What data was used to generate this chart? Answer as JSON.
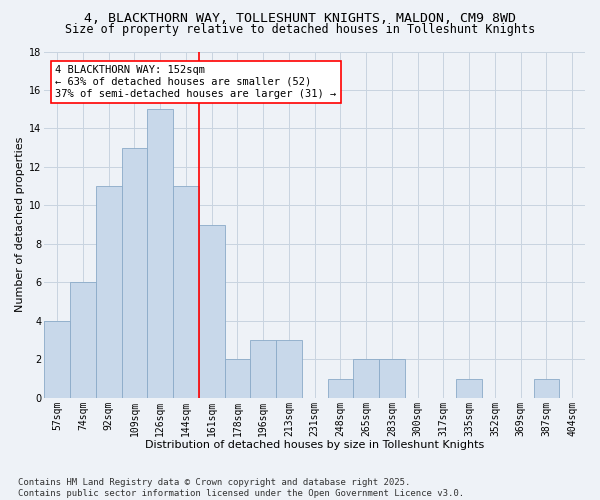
{
  "title": "4, BLACKTHORN WAY, TOLLESHUNT KNIGHTS, MALDON, CM9 8WD",
  "subtitle": "Size of property relative to detached houses in Tolleshunt Knights",
  "xlabel": "Distribution of detached houses by size in Tolleshunt Knights",
  "ylabel": "Number of detached properties",
  "footnote": "Contains HM Land Registry data © Crown copyright and database right 2025.\nContains public sector information licensed under the Open Government Licence v3.0.",
  "categories": [
    "57sqm",
    "74sqm",
    "92sqm",
    "109sqm",
    "126sqm",
    "144sqm",
    "161sqm",
    "178sqm",
    "196sqm",
    "213sqm",
    "231sqm",
    "248sqm",
    "265sqm",
    "283sqm",
    "300sqm",
    "317sqm",
    "335sqm",
    "352sqm",
    "369sqm",
    "387sqm",
    "404sqm"
  ],
  "values": [
    4,
    6,
    11,
    13,
    15,
    11,
    9,
    2,
    3,
    3,
    0,
    1,
    2,
    2,
    0,
    0,
    1,
    0,
    0,
    1,
    0
  ],
  "bar_color": "#c8d8ea",
  "bar_edge_color": "#8aaac8",
  "vline_x": 5.5,
  "vline_color": "red",
  "annotation_text": "4 BLACKTHORN WAY: 152sqm\n← 63% of detached houses are smaller (52)\n37% of semi-detached houses are larger (31) →",
  "annotation_box_color": "white",
  "annotation_box_edge_color": "red",
  "ylim": [
    0,
    18
  ],
  "yticks": [
    0,
    2,
    4,
    6,
    8,
    10,
    12,
    14,
    16,
    18
  ],
  "bg_color": "#eef2f7",
  "plot_bg_color": "#eef2f7",
  "grid_color": "#c8d4e0",
  "title_fontsize": 9.5,
  "subtitle_fontsize": 8.5,
  "label_fontsize": 8,
  "tick_fontsize": 7,
  "annot_fontsize": 7.5,
  "footnote_fontsize": 6.5
}
